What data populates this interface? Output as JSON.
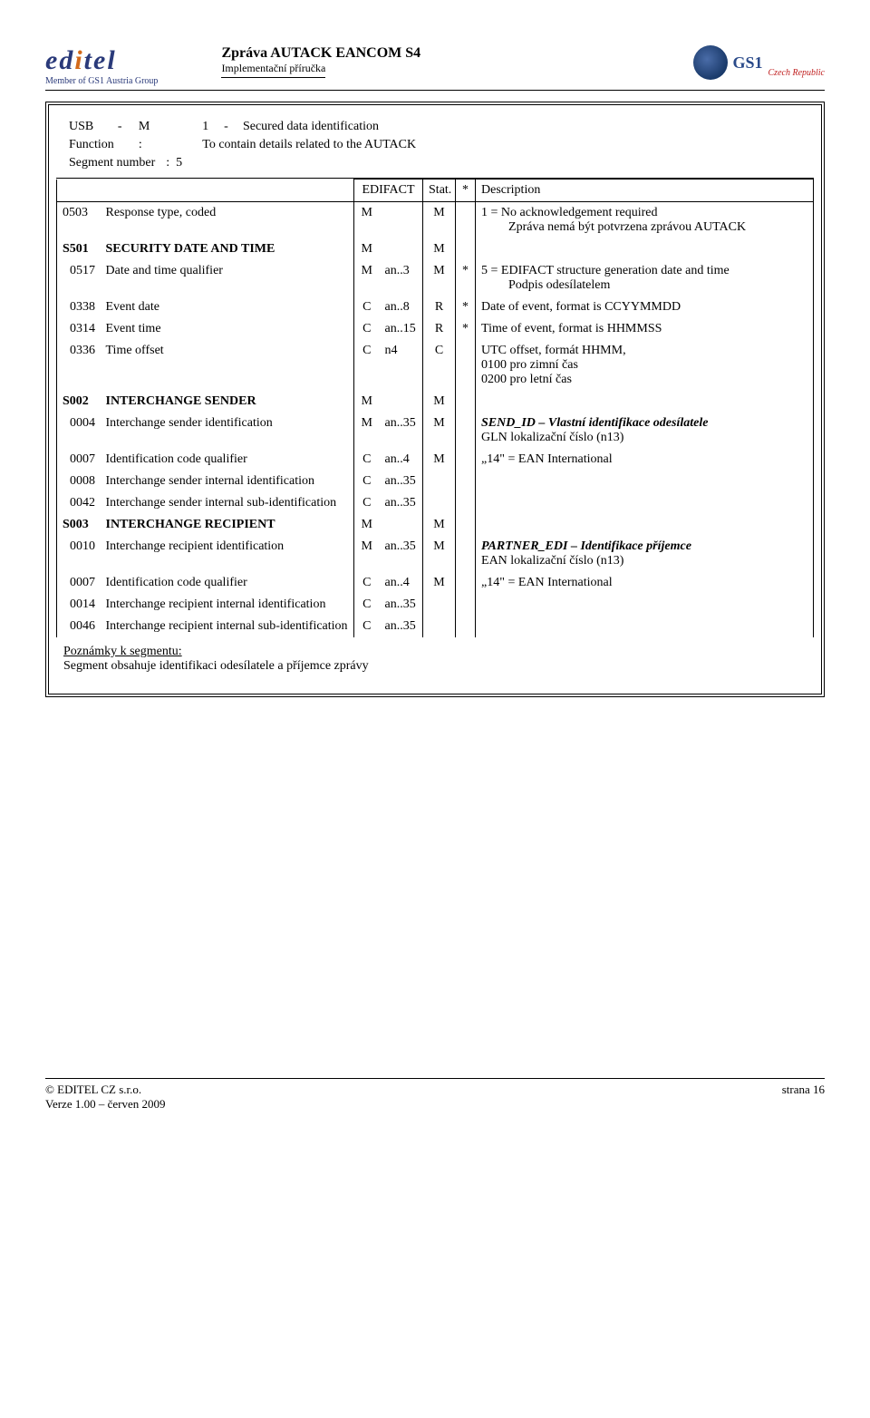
{
  "header": {
    "logo_text": "editel",
    "logo_subtext": "Member of GS1 Austria Group",
    "title": "Zpráva AUTACK EANCOM S4",
    "subtitle": "Implementační příručka",
    "gs1_label": "GS1",
    "gs1_region": "Czech Republic"
  },
  "segment": {
    "code": "USB",
    "dash": "-",
    "status": "M",
    "rep": "1",
    "rep_dash": "-",
    "title": "Secured data identification",
    "function_label": "Function",
    "function_colon": ":",
    "function_value": "To contain details related to the AUTACK",
    "segnum_label": "Segment number",
    "segnum_colon": ":",
    "segnum_value": "5"
  },
  "thead": {
    "edifact": "EDIFACT",
    "stat": "Stat.",
    "star": "*",
    "desc": "Description"
  },
  "rows": [
    {
      "tag": "0503",
      "name": "Response type, coded",
      "st": "M",
      "fmt": "",
      "use": "M",
      "star": "",
      "desc": "1 = No acknowledgement required\nZpráva nemá být potvrzena zprávou AUTACK"
    },
    {
      "tag": "S501",
      "name": "SECURITY DATE AND TIME",
      "st": "M",
      "fmt": "",
      "use": "M",
      "star": "",
      "desc": ""
    },
    {
      "tag": "0517",
      "name": "Date and time qualifier",
      "st": "M",
      "fmt": "an..3",
      "use": "M",
      "star": "*",
      "desc": "5 = EDIFACT structure generation date and time\nPodpis odesílatelem"
    },
    {
      "tag": "0338",
      "name": "Event date",
      "st": "C",
      "fmt": "an..8",
      "use": "R",
      "star": "*",
      "desc": "Date of event, format is CCYYMMDD"
    },
    {
      "tag": "0314",
      "name": "Event time",
      "st": "C",
      "fmt": "an..15",
      "use": "R",
      "star": "*",
      "desc": "Time of event, format is HHMMSS"
    },
    {
      "tag": "0336",
      "name": "Time offset",
      "st": "C",
      "fmt": "n4",
      "use": "C",
      "star": "",
      "desc": "UTC offset, formát HHMM,\n0100 pro zimní čas\n0200 pro letní čas"
    },
    {
      "tag": "S002",
      "name": "INTERCHANGE SENDER",
      "st": "M",
      "fmt": "",
      "use": "M",
      "star": "",
      "desc": ""
    },
    {
      "tag": "0004",
      "name": "Interchange sender identification",
      "st": "M",
      "fmt": "an..35",
      "use": "M",
      "star": "",
      "desc": "SEND_ID – Vlastní identifikace odesílatele\nGLN lokalizační číslo (n13)",
      "desc_first_bold": true
    },
    {
      "tag": "0007",
      "name": "Identification code qualifier",
      "st": "C",
      "fmt": "an..4",
      "use": "M",
      "star": "",
      "desc": "„14\" = EAN International"
    },
    {
      "tag": "0008",
      "name": "Interchange sender internal identification",
      "st": "C",
      "fmt": "an..35",
      "use": "",
      "star": "",
      "desc": ""
    },
    {
      "tag": "0042",
      "name": "Interchange sender internal sub-identification",
      "st": "C",
      "fmt": "an..35",
      "use": "",
      "star": "",
      "desc": ""
    },
    {
      "tag": "S003",
      "name": "INTERCHANGE RECIPIENT",
      "st": "M",
      "fmt": "",
      "use": "M",
      "star": "",
      "desc": ""
    },
    {
      "tag": "0010",
      "name": "Interchange recipient identification",
      "st": "M",
      "fmt": "an..35",
      "use": "M",
      "star": "",
      "desc": "PARTNER_EDI – Identifikace příjemce\nEAN lokalizační číslo (n13)",
      "desc_first_bold": true
    },
    {
      "tag": "0007",
      "name": "Identification code qualifier",
      "st": "C",
      "fmt": "an..4",
      "use": "M",
      "star": "",
      "desc": "„14\" = EAN International"
    },
    {
      "tag": "0014",
      "name": "Interchange recipient internal identification",
      "st": "C",
      "fmt": "an..35",
      "use": "",
      "star": "",
      "desc": ""
    },
    {
      "tag": "0046",
      "name": "Interchange recipient internal sub-identification",
      "st": "C",
      "fmt": "an..35",
      "use": "",
      "star": "",
      "desc": ""
    }
  ],
  "group_rows": [
    "S501",
    "S002",
    "S003"
  ],
  "indent_rows": [
    "0517",
    "0338",
    "0314",
    "0336",
    "0004",
    "0007",
    "0008",
    "0042",
    "0010",
    "0014",
    "0046"
  ],
  "notes": {
    "heading": "Poznámky k segmentu:",
    "text": "Segment obsahuje identifikaci odesílatele a příjemce zprávy"
  },
  "footer": {
    "left1": "© EDITEL CZ s.r.o.",
    "left2": "Verze 1.00 – červen 2009",
    "right": "strana 16"
  }
}
